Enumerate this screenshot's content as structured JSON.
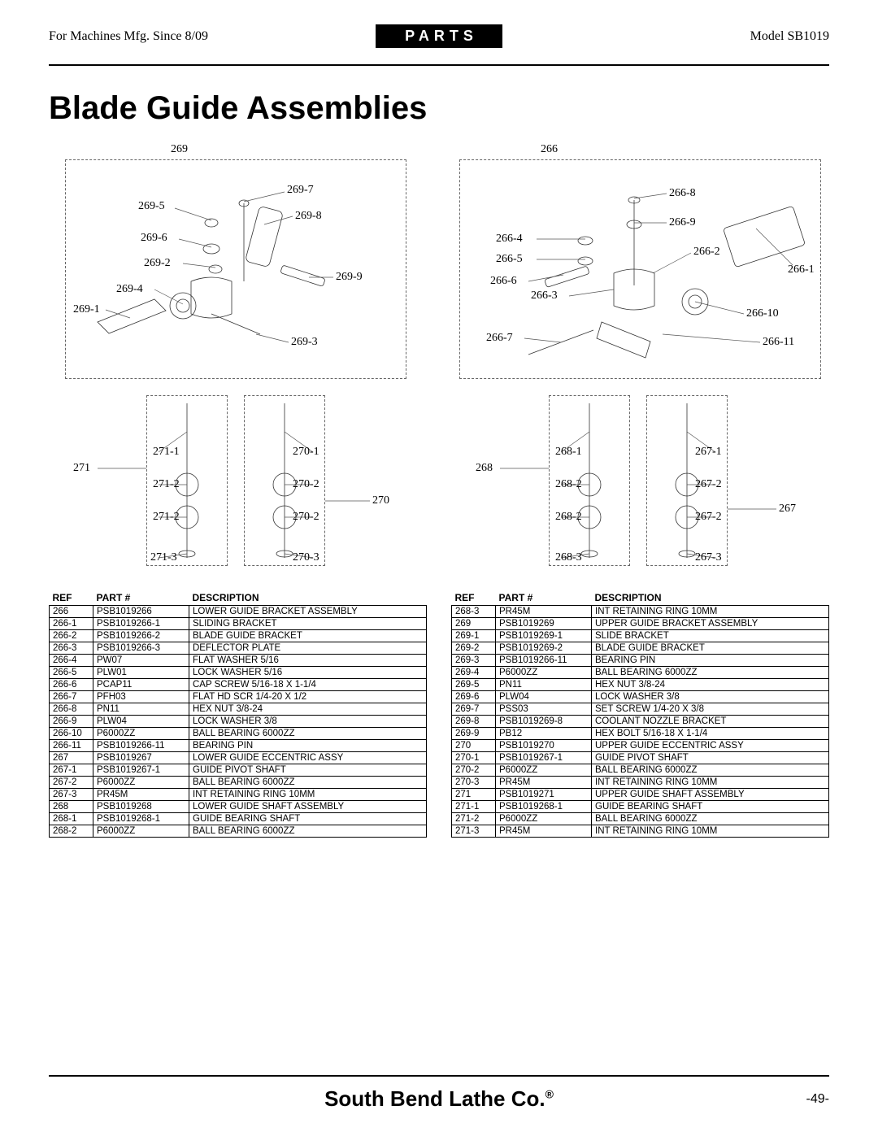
{
  "header": {
    "left": "For Machines Mfg. Since 8/09",
    "mid": "PARTS",
    "right": "Model SB1019"
  },
  "title": "Blade Guide Assemblies",
  "diagram_left": {
    "group_top": "269",
    "labels_top": [
      "269-7",
      "269-8",
      "269-9",
      "269-3",
      "269-5",
      "269-6",
      "269-2",
      "269-4",
      "269-1"
    ],
    "group_bl": "271",
    "group_br": "270",
    "labels_bl": [
      "271-1",
      "271-2",
      "271-2",
      "271-3"
    ],
    "labels_br": [
      "270-1",
      "270-2",
      "270-2",
      "270-3"
    ]
  },
  "diagram_right": {
    "group_top": "266",
    "labels_top_r": [
      "266-8",
      "266-9",
      "266-2",
      "266-1",
      "266-10",
      "266-11"
    ],
    "labels_top_l": [
      "266-4",
      "266-5",
      "266-6",
      "266-3",
      "266-7"
    ],
    "group_bl": "268",
    "group_br": "267",
    "labels_bl": [
      "268-1",
      "268-2",
      "268-2",
      "268-3"
    ],
    "labels_br": [
      "267-1",
      "267-2",
      "267-2",
      "267-3"
    ]
  },
  "table_headers": [
    "REF",
    "PART #",
    "DESCRIPTION"
  ],
  "table_left": [
    [
      "266",
      "PSB1019266",
      "LOWER GUIDE BRACKET ASSEMBLY"
    ],
    [
      "266-1",
      "PSB1019266-1",
      "SLIDING BRACKET"
    ],
    [
      "266-2",
      "PSB1019266-2",
      "BLADE GUIDE BRACKET"
    ],
    [
      "266-3",
      "PSB1019266-3",
      "DEFLECTOR PLATE"
    ],
    [
      "266-4",
      "PW07",
      "FLAT WASHER 5/16"
    ],
    [
      "266-5",
      "PLW01",
      "LOCK WASHER 5/16"
    ],
    [
      "266-6",
      "PCAP11",
      "CAP SCREW 5/16-18 X 1-1/4"
    ],
    [
      "266-7",
      "PFH03",
      "FLAT HD SCR 1/4-20 X 1/2"
    ],
    [
      "266-8",
      "PN11",
      "HEX NUT 3/8-24"
    ],
    [
      "266-9",
      "PLW04",
      "LOCK WASHER 3/8"
    ],
    [
      "266-10",
      "P6000ZZ",
      "BALL BEARING 6000ZZ"
    ],
    [
      "266-11",
      "PSB1019266-11",
      "BEARING PIN"
    ],
    [
      "267",
      "PSB1019267",
      "LOWER GUIDE ECCENTRIC ASSY"
    ],
    [
      "267-1",
      "PSB1019267-1",
      "GUIDE PIVOT SHAFT"
    ],
    [
      "267-2",
      "P6000ZZ",
      "BALL BEARING 6000ZZ"
    ],
    [
      "267-3",
      "PR45M",
      "INT RETAINING RING 10MM"
    ],
    [
      "268",
      "PSB1019268",
      "LOWER GUIDE SHAFT ASSEMBLY"
    ],
    [
      "268-1",
      "PSB1019268-1",
      "GUIDE BEARING SHAFT"
    ],
    [
      "268-2",
      "P6000ZZ",
      "BALL BEARING 6000ZZ"
    ]
  ],
  "table_right": [
    [
      "268-3",
      "PR45M",
      "INT RETAINING RING 10MM"
    ],
    [
      "269",
      "PSB1019269",
      "UPPER GUIDE BRACKET ASSEMBLY"
    ],
    [
      "269-1",
      "PSB1019269-1",
      "SLIDE BRACKET"
    ],
    [
      "269-2",
      "PSB1019269-2",
      "BLADE GUIDE BRACKET"
    ],
    [
      "269-3",
      "PSB1019266-11",
      "BEARING PIN"
    ],
    [
      "269-4",
      "P6000ZZ",
      "BALL BEARING 6000ZZ"
    ],
    [
      "269-5",
      "PN11",
      "HEX NUT 3/8-24"
    ],
    [
      "269-6",
      "PLW04",
      "LOCK WASHER 3/8"
    ],
    [
      "269-7",
      "PSS03",
      "SET SCREW 1/4-20 X 3/8"
    ],
    [
      "269-8",
      "PSB1019269-8",
      "COOLANT NOZZLE BRACKET"
    ],
    [
      "269-9",
      "PB12",
      "HEX BOLT 5/16-18 X 1-1/4"
    ],
    [
      "270",
      "PSB1019270",
      "UPPER GUIDE ECCENTRIC ASSY"
    ],
    [
      "270-1",
      "PSB1019267-1",
      "GUIDE PIVOT SHAFT"
    ],
    [
      "270-2",
      "P6000ZZ",
      "BALL BEARING 6000ZZ"
    ],
    [
      "270-3",
      "PR45M",
      "INT RETAINING RING 10MM"
    ],
    [
      "271",
      "PSB1019271",
      "UPPER GUIDE SHAFT ASSEMBLY"
    ],
    [
      "271-1",
      "PSB1019268-1",
      "GUIDE BEARING SHAFT"
    ],
    [
      "271-2",
      "P6000ZZ",
      "BALL BEARING 6000ZZ"
    ],
    [
      "271-3",
      "PR45M",
      "INT RETAINING RING 10MM"
    ]
  ],
  "footer": {
    "brand": "South Bend Lathe Co.",
    "page": "-49-"
  }
}
